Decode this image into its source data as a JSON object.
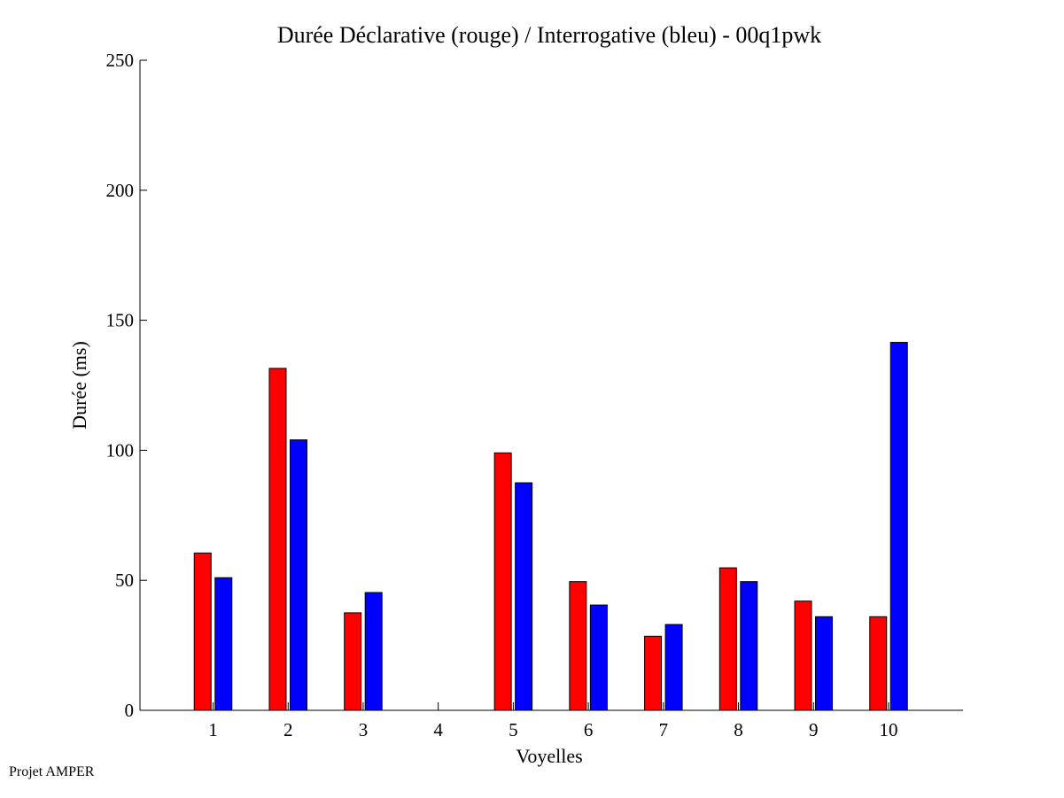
{
  "footer": "Projet AMPER",
  "colors": {
    "series_1": "#ff0000",
    "series_2": "#0000ff",
    "axis": "#000000",
    "background": "#ffffff"
  },
  "chart_data": {
    "type": "bar",
    "title": "Durée Déclarative (rouge) / Interrogative (bleu) - 00q1pwk",
    "xlabel": "Voyelles",
    "ylabel": "Durée (ms)",
    "categories": [
      "1",
      "2",
      "3",
      "4",
      "5",
      "6",
      "7",
      "8",
      "9",
      "10"
    ],
    "series": [
      {
        "values": [
          60.5,
          131.5,
          37.5,
          0,
          99,
          49.5,
          28.5,
          54.8,
          42,
          36
        ]
      },
      {
        "values": [
          51,
          104,
          45.3,
          0,
          87.5,
          40.5,
          33,
          49.5,
          36,
          141.5
        ]
      }
    ],
    "ylim": [
      0,
      250
    ],
    "yticks": [
      0,
      50,
      100,
      150,
      200,
      250
    ],
    "grid": false,
    "legend": "none"
  }
}
